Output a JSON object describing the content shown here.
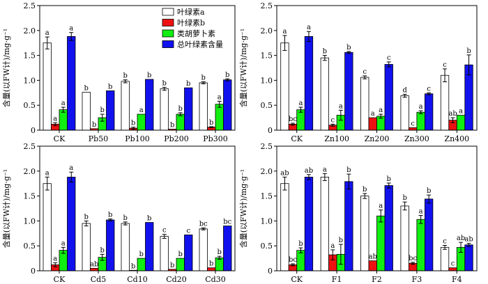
{
  "colors": {
    "chl_a": "#ffffff",
    "chl_b": "#ee1111",
    "carotenoid": "#11ee11",
    "total": "#1111ee",
    "axis": "#000000"
  },
  "ylabel": "含量(以FW计)/mg·g⁻¹",
  "legend": [
    "叶绿素a",
    "叶绿素b",
    "类胡萝卜素",
    "总叶绿素含量"
  ],
  "chart_data": [
    {
      "type": "bar",
      "categories": [
        "CK",
        "Pb50",
        "Pb100",
        "Pb200",
        "Pb300"
      ],
      "ylim": [
        0,
        2.5
      ],
      "yticks": [
        "0",
        "0.5",
        "1.0",
        "1.5",
        "2.0",
        "2.5"
      ],
      "legend_position": "top-right",
      "series": [
        {
          "name": "叶绿素a",
          "values": [
            1.75,
            0.76,
            0.98,
            0.83,
            0.95
          ],
          "errors": [
            0.12,
            0,
            0.03,
            0.03,
            0.02
          ],
          "labels": [
            "a",
            "b",
            "b",
            "b",
            "b"
          ]
        },
        {
          "name": "叶绿素b",
          "values": [
            0.12,
            0.03,
            0.04,
            0.02,
            0.06
          ],
          "errors": [
            0.03,
            0,
            0.02,
            0,
            0.01
          ],
          "labels": [
            "a",
            "b",
            "b",
            "b",
            "b"
          ]
        },
        {
          "name": "类胡萝卜素",
          "values": [
            0.41,
            0.25,
            0.32,
            0.32,
            0.52
          ],
          "errors": [
            0.05,
            0.07,
            0,
            0.03,
            0.06
          ],
          "labels": [
            "a",
            "b",
            "a",
            "b",
            "a"
          ]
        },
        {
          "name": "总叶绿素含量",
          "values": [
            1.88,
            0.79,
            1.02,
            0.85,
            1.01
          ],
          "errors": [
            0.08,
            0,
            0,
            0,
            0.02
          ],
          "labels": [
            "a",
            "b",
            "b",
            "b",
            "b"
          ]
        }
      ]
    },
    {
      "type": "bar",
      "categories": [
        "CK",
        "Zn100",
        "Zn200",
        "Zn300",
        "Zn400"
      ],
      "ylim": [
        0,
        2.5
      ],
      "yticks": [
        "0",
        "0.5",
        "1.0",
        "1.5",
        "2.0",
        "2.5"
      ],
      "series": [
        {
          "name": "叶绿素a",
          "values": [
            1.75,
            1.45,
            1.06,
            0.69,
            1.1
          ],
          "errors": [
            0.15,
            0.05,
            0.03,
            0.03,
            0.13
          ],
          "labels": [
            "a",
            "b",
            "c",
            "d",
            "c"
          ]
        },
        {
          "name": "叶绿素b",
          "values": [
            0.12,
            0.1,
            0.25,
            0.05,
            0.2
          ],
          "errors": [
            0.02,
            0.02,
            0,
            0,
            0.05
          ],
          "labels": [
            "bc",
            "c",
            "a",
            "c",
            "ab"
          ]
        },
        {
          "name": "类胡萝卜素",
          "values": [
            0.41,
            0.3,
            0.28,
            0.36,
            0.3
          ],
          "errors": [
            0.05,
            0.1,
            0.04,
            0.03,
            0
          ],
          "labels": [
            "a",
            "a",
            "a",
            "a",
            "a"
          ]
        },
        {
          "name": "总叶绿素含量",
          "values": [
            1.88,
            1.56,
            1.32,
            0.73,
            1.31
          ],
          "errors": [
            0.1,
            0.02,
            0.05,
            0.02,
            0.2
          ],
          "labels": [
            "a",
            "b",
            "c",
            "c",
            "b"
          ]
        }
      ]
    },
    {
      "type": "bar",
      "categories": [
        "CK",
        "Cd5",
        "Cd10",
        "Cd20",
        "Cd30"
      ],
      "ylim": [
        0,
        2.5
      ],
      "yticks": [
        "0",
        "0.5",
        "1.0",
        "1.5",
        "2.0",
        "2.5"
      ],
      "series": [
        {
          "name": "叶绿素a",
          "values": [
            1.75,
            0.95,
            0.95,
            0.69,
            0.84
          ],
          "errors": [
            0.13,
            0.05,
            0.03,
            0.04,
            0.02
          ],
          "labels": [
            "a",
            "b",
            "b",
            "c",
            "bc"
          ]
        },
        {
          "name": "叶绿素b",
          "values": [
            0.12,
            0.05,
            0.01,
            0.03,
            0.06
          ],
          "errors": [
            0.04,
            0,
            0,
            0,
            0
          ],
          "labels": [
            "a",
            "ab",
            "b",
            "b",
            "b"
          ]
        },
        {
          "name": "类胡萝卜素",
          "values": [
            0.41,
            0.27,
            0.25,
            0.25,
            0.26
          ],
          "errors": [
            0.06,
            0.06,
            0,
            0,
            0.03
          ],
          "labels": [
            "a",
            "b",
            "b",
            "b",
            "b"
          ]
        },
        {
          "name": "总叶绿素含量",
          "values": [
            1.88,
            1.02,
            0.97,
            0.72,
            0.9
          ],
          "errors": [
            0.1,
            0.02,
            0,
            0,
            0
          ],
          "labels": [
            "a",
            "b",
            "b",
            "c",
            "bc"
          ]
        }
      ]
    },
    {
      "type": "bar",
      "categories": [
        "CK",
        "F1",
        "F2",
        "F3",
        "F4"
      ],
      "ylim": [
        0,
        2.5
      ],
      "yticks": [
        "0",
        "0.5",
        "1.0",
        "1.5",
        "2.0",
        "2.5"
      ],
      "series": [
        {
          "name": "叶绿素a",
          "values": [
            1.75,
            1.88,
            1.5,
            1.3,
            0.47
          ],
          "errors": [
            0.13,
            0.07,
            0.05,
            0.08,
            0.04
          ],
          "labels": [
            "ab",
            "a",
            "b",
            "b",
            "c"
          ]
        },
        {
          "name": "叶绿素b",
          "values": [
            0.12,
            0.32,
            0.2,
            0.15,
            0.06
          ],
          "errors": [
            0.02,
            0.1,
            0,
            0.02,
            0
          ],
          "labels": [
            "bc",
            "a",
            "ab",
            "bc",
            "c"
          ]
        },
        {
          "name": "类胡萝卜素",
          "values": [
            0.41,
            0.33,
            1.1,
            1.03,
            0.47
          ],
          "errors": [
            0.05,
            0.2,
            0.12,
            0.08,
            0.1
          ],
          "labels": [
            "b",
            "b",
            "a",
            "a",
            "ab"
          ]
        },
        {
          "name": "总叶绿素含量",
          "values": [
            1.88,
            1.79,
            1.71,
            1.44,
            0.52
          ],
          "errors": [
            0.05,
            0.15,
            0.05,
            0.08,
            0.03
          ],
          "labels": [
            "ab",
            "b",
            "b",
            "b",
            "ab"
          ]
        }
      ]
    }
  ]
}
